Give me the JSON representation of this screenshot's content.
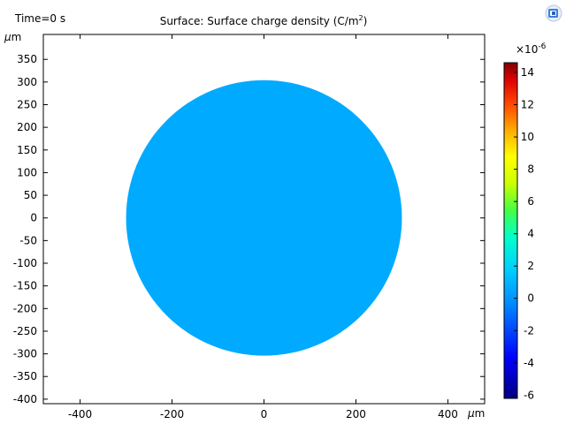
{
  "header": {
    "time_label": "Time=0 s",
    "title_main": "Surface: Surface charge density (C/m",
    "title_sup": "2",
    "title_end": ")"
  },
  "axes": {
    "y_unit_mu": "μ",
    "y_unit_m": "m",
    "x_unit_mu": "μ",
    "x_unit_m": "m",
    "x_ticks": [
      "-400",
      "-200",
      "0",
      "200",
      "400"
    ],
    "y_ticks": [
      "350",
      "300",
      "250",
      "200",
      "150",
      "100",
      "50",
      "0",
      "-50",
      "-100",
      "-150",
      "-200",
      "-250",
      "-300",
      "-350",
      "-400"
    ]
  },
  "colorbar": {
    "exponent_base": "×10",
    "exponent_power": "-6",
    "ticks": [
      "14",
      "12",
      "10",
      "8",
      "6",
      "4",
      "2",
      "0",
      "-2",
      "-4",
      "-6"
    ],
    "min_value": -6.2,
    "max_value": 14.6,
    "colormap": "Rainbow"
  },
  "surface": {
    "shape": "disk",
    "radius_um": 300,
    "value": 0,
    "fill_color": "#00aaff"
  },
  "toolbar": {
    "logo_icon": "comsol-logo-icon"
  },
  "chart_data": {
    "type": "heatmap",
    "title": "Surface: Surface charge density (C/m²)",
    "subtitle": "Time=0 s",
    "xlabel": "μm",
    "ylabel": "μm",
    "xlim": [
      -480,
      480
    ],
    "ylim": [
      -410,
      405
    ],
    "x_ticks": [
      -400,
      -200,
      0,
      200,
      400
    ],
    "y_ticks": [
      350,
      300,
      250,
      200,
      150,
      100,
      50,
      0,
      -50,
      -100,
      -150,
      -200,
      -250,
      -300,
      -350,
      -400
    ],
    "regions": [
      {
        "name": "disk",
        "center": [
          0,
          0
        ],
        "radius": 300,
        "value": 0
      }
    ],
    "colorbar": {
      "range": [
        -6.2e-06,
        1.46e-05
      ],
      "ticks": [
        14,
        12,
        10,
        8,
        6,
        4,
        2,
        0,
        -2,
        -4,
        -6
      ],
      "scale_factor": "1e-6",
      "colormap": "Rainbow"
    },
    "grid": false
  }
}
